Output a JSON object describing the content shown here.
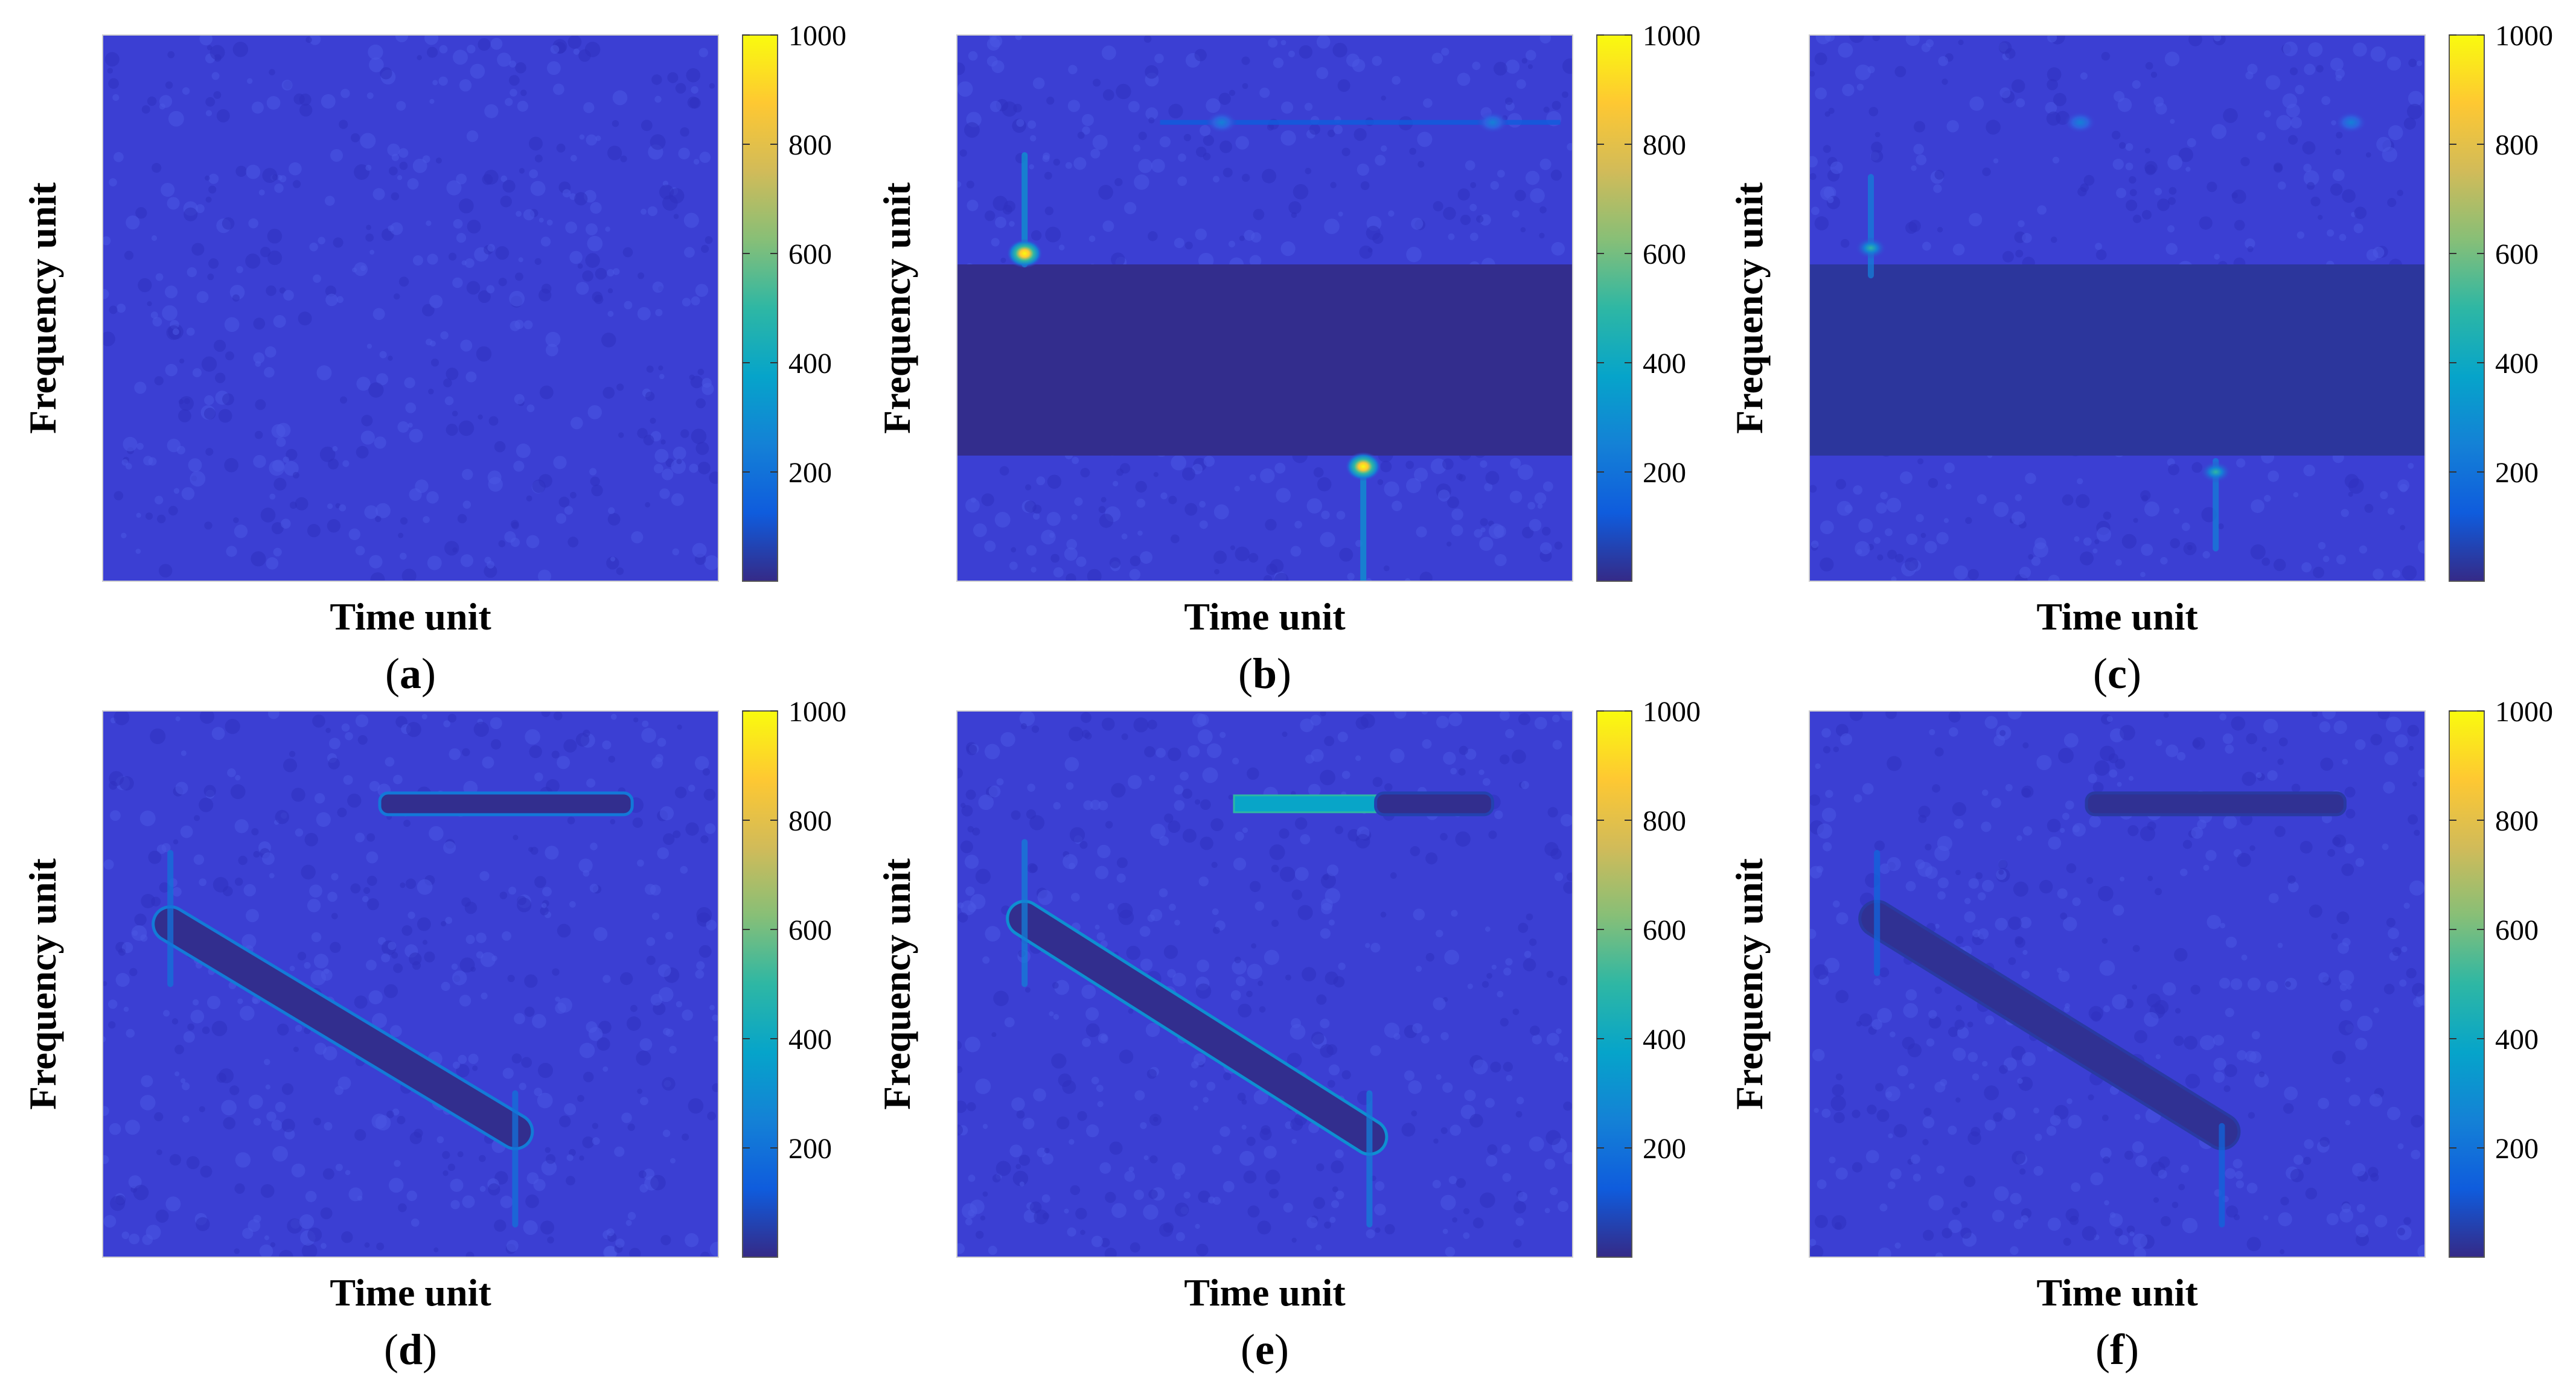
{
  "colormap": {
    "name": "parula",
    "stops": [
      "#352a87",
      "#0f5cdd",
      "#1481d6",
      "#06a4ca",
      "#2eb7a4",
      "#87bf77",
      "#d1bb59",
      "#fec832",
      "#f9fb0e"
    ]
  },
  "background_color": "#3b3fd3",
  "chart_data": [
    {
      "type": "heatmap",
      "panel": "a",
      "xlabel": "Time unit",
      "ylabel": "Frequency unit",
      "colorbar": {
        "min": 0,
        "max": 1000,
        "ticks": [
          200,
          400,
          600,
          800,
          1000
        ]
      },
      "features": [
        {
          "kind": "noise",
          "level": 60
        }
      ]
    },
    {
      "type": "heatmap",
      "panel": "b",
      "xlabel": "Time unit",
      "ylabel": "Frequency unit",
      "colorbar": {
        "min": 0,
        "max": 1000,
        "ticks": [
          200,
          400,
          600,
          800,
          1000
        ]
      },
      "features": [
        {
          "kind": "noise",
          "level": 60
        },
        {
          "kind": "band_notch",
          "f0": 0.23,
          "f1": 0.58,
          "level": 8
        },
        {
          "kind": "hline",
          "t0": 0.33,
          "t1": 0.98,
          "f": 0.84,
          "level": 260
        },
        {
          "kind": "vline",
          "t": 0.11,
          "f0": 0.58,
          "f1": 0.78,
          "level": 320
        },
        {
          "kind": "vline",
          "t": 0.66,
          "f0": 0.0,
          "f1": 0.22,
          "level": 320
        },
        {
          "kind": "peak",
          "t": 0.11,
          "f": 0.6,
          "level": 950
        },
        {
          "kind": "peak",
          "t": 0.66,
          "f": 0.21,
          "level": 950
        },
        {
          "kind": "peak",
          "t": 0.43,
          "f": 0.84,
          "level": 320
        },
        {
          "kind": "peak",
          "t": 0.87,
          "f": 0.84,
          "level": 320
        }
      ]
    },
    {
      "type": "heatmap",
      "panel": "c",
      "xlabel": "Time unit",
      "ylabel": "Frequency unit",
      "colorbar": {
        "min": 0,
        "max": 1000,
        "ticks": [
          200,
          400,
          600,
          800,
          1000
        ]
      },
      "features": [
        {
          "kind": "noise",
          "level": 60
        },
        {
          "kind": "band_notch",
          "f0": 0.23,
          "f1": 0.58,
          "level": 30
        },
        {
          "kind": "vline",
          "t": 0.1,
          "f0": 0.56,
          "f1": 0.74,
          "level": 240
        },
        {
          "kind": "vline",
          "t": 0.66,
          "f0": 0.06,
          "f1": 0.22,
          "level": 240
        },
        {
          "kind": "peak",
          "t": 0.1,
          "f": 0.61,
          "level": 480
        },
        {
          "kind": "peak",
          "t": 0.66,
          "f": 0.2,
          "level": 400
        },
        {
          "kind": "peak",
          "t": 0.44,
          "f": 0.84,
          "level": 220
        },
        {
          "kind": "peak",
          "t": 0.88,
          "f": 0.84,
          "level": 220
        }
      ]
    },
    {
      "type": "heatmap",
      "panel": "d",
      "xlabel": "Time unit",
      "ylabel": "Frequency unit",
      "colorbar": {
        "min": 0,
        "max": 1000,
        "ticks": [
          200,
          400,
          600,
          800,
          1000
        ]
      },
      "features": [
        {
          "kind": "noise",
          "level": 60
        },
        {
          "kind": "hline_notch",
          "t0": 0.45,
          "t1": 0.86,
          "f": 0.83,
          "level": 10,
          "edge": 220
        },
        {
          "kind": "diag_notch",
          "t0": 0.11,
          "f0": 0.61,
          "t1": 0.67,
          "f1": 0.23,
          "level": 10,
          "edge": 230
        },
        {
          "kind": "vline",
          "t": 0.11,
          "f0": 0.5,
          "f1": 0.74,
          "level": 200
        },
        {
          "kind": "vline",
          "t": 0.67,
          "f0": 0.06,
          "f1": 0.3,
          "level": 200
        }
      ]
    },
    {
      "type": "heatmap",
      "panel": "e",
      "xlabel": "Time unit",
      "ylabel": "Frequency unit",
      "colorbar": {
        "min": 0,
        "max": 1000,
        "ticks": [
          200,
          400,
          600,
          800,
          1000
        ]
      },
      "features": [
        {
          "kind": "noise",
          "level": 60
        },
        {
          "kind": "hline_fill",
          "t0": 0.45,
          "t1": 0.68,
          "f": 0.83,
          "level": 380
        },
        {
          "kind": "hline_notch",
          "t0": 0.68,
          "t1": 0.87,
          "f": 0.83,
          "level": 10,
          "edge": 60
        },
        {
          "kind": "diag_notch",
          "t0": 0.11,
          "f0": 0.62,
          "t1": 0.67,
          "f1": 0.22,
          "level": 10,
          "edge": 300
        },
        {
          "kind": "vline",
          "t": 0.11,
          "f0": 0.5,
          "f1": 0.76,
          "level": 240
        },
        {
          "kind": "vline",
          "t": 0.67,
          "f0": 0.06,
          "f1": 0.3,
          "level": 240
        }
      ]
    },
    {
      "type": "heatmap",
      "panel": "f",
      "xlabel": "Time unit",
      "ylabel": "Frequency unit",
      "colorbar": {
        "min": 0,
        "max": 1000,
        "ticks": [
          200,
          400,
          600,
          800,
          1000
        ]
      },
      "features": [
        {
          "kind": "noise",
          "level": 60
        },
        {
          "kind": "hline_notch",
          "t0": 0.45,
          "t1": 0.87,
          "f": 0.83,
          "level": 18,
          "edge": 40
        },
        {
          "kind": "diag_notch",
          "t0": 0.11,
          "f0": 0.62,
          "t1": 0.67,
          "f1": 0.23,
          "level": 18,
          "edge": 40
        },
        {
          "kind": "vline",
          "t": 0.11,
          "f0": 0.52,
          "f1": 0.74,
          "level": 160
        },
        {
          "kind": "vline",
          "t": 0.67,
          "f0": 0.06,
          "f1": 0.24,
          "level": 160
        }
      ]
    }
  ]
}
